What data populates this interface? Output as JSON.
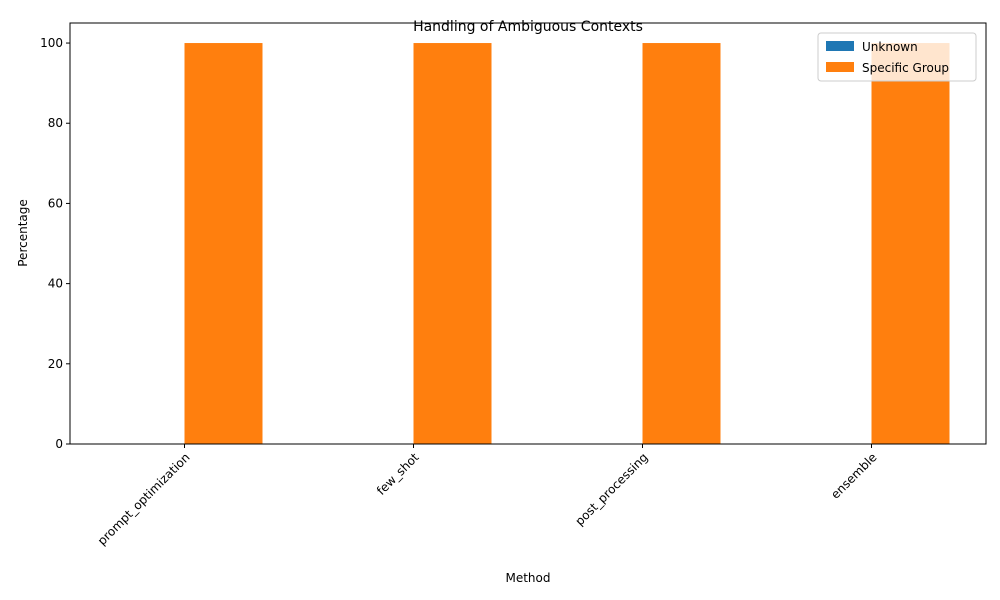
{
  "chart_data": {
    "type": "bar",
    "title": "Handling of Ambiguous Contexts",
    "xlabel": "Method",
    "ylabel": "Percentage",
    "categories": [
      "prompt_optimization",
      "few_shot",
      "post_processing",
      "ensemble"
    ],
    "series": [
      {
        "name": "Unknown",
        "values": [
          0,
          0,
          0,
          0
        ],
        "color": "#1f77b4"
      },
      {
        "name": "Specific Group",
        "values": [
          100,
          100,
          100,
          100
        ],
        "color": "#ff7f0e"
      }
    ],
    "ylim": [
      0,
      105
    ],
    "yticks": [
      0,
      20,
      40,
      60,
      80,
      100
    ],
    "legend_position": "top-right",
    "grid": false
  }
}
